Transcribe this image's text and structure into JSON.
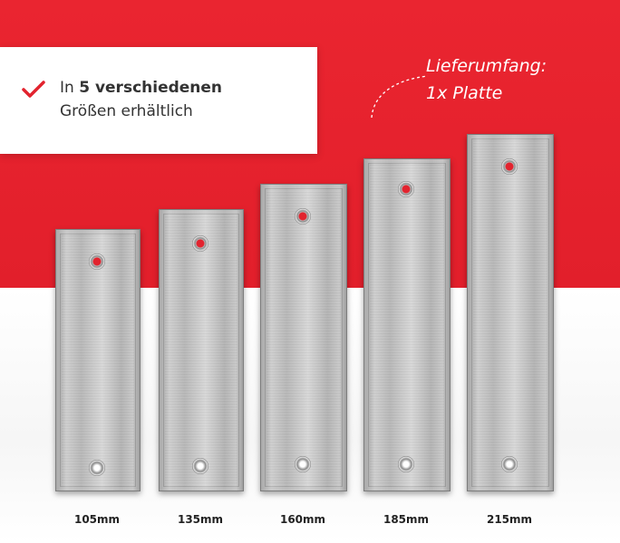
{
  "callout": {
    "line1_prefix": "In ",
    "line1_bold": "5 verschiedenen",
    "line2": "Größen erhältlich",
    "check_icon": "checkmark-icon",
    "check_color": "#e2232e"
  },
  "delivery": {
    "line1": "Lieferumfang:",
    "line2": "1x Platte"
  },
  "colors": {
    "background_top": "#e3202c",
    "background_bottom": "#ffffff"
  },
  "plates": [
    {
      "label": "105mm"
    },
    {
      "label": "135mm"
    },
    {
      "label": "160mm"
    },
    {
      "label": "185mm"
    },
    {
      "label": "215mm"
    }
  ]
}
